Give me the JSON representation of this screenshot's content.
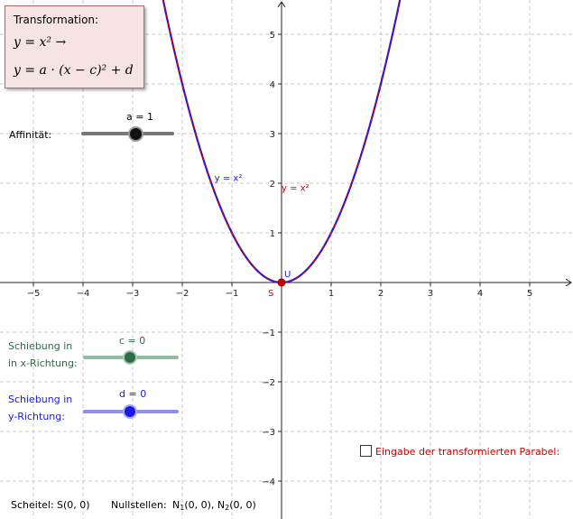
{
  "infobox": {
    "label": "Transformation:",
    "formula1": "y = x² →",
    "formula2": "y = a · (x − c)² + d"
  },
  "sliders": {
    "affinity": {
      "label": "Affinität:",
      "value_text": "a = 1",
      "value": 1,
      "color": "#555555"
    },
    "shift_x": {
      "label_line1": "Schiebung in",
      "label_line2": "in x-Richtung:",
      "value_text": "c = 0",
      "value": 0,
      "color": "#2e6b46"
    },
    "shift_y": {
      "label_line1": "Schiebung in",
      "label_line2": "y-Richtung:",
      "value_text": "d = 0",
      "value": 0,
      "color": "#1a1ae6"
    }
  },
  "checkbox": {
    "label": "Eingabe der transformierten Parabel:",
    "checked": false,
    "color": "#cc0000"
  },
  "footer": {
    "vertex_label": "Scheitel:",
    "vertex_value": "S(0, 0)",
    "zeros_label": "Nullstellen:",
    "zero1_main": "N",
    "zero1_sub": "1",
    "zero1_rest": "(0, 0), ",
    "zero2_main": "N",
    "zero2_sub": "2",
    "zero2_rest": "(0, 0)"
  },
  "chart_data": {
    "type": "line",
    "xlim": [
      -5.5,
      5.75
    ],
    "ylim": [
      -4.65,
      5.5
    ],
    "x_ticks": [
      -5,
      -4,
      -3,
      -2,
      -1,
      1,
      2,
      3,
      4,
      5
    ],
    "y_ticks": [
      -4,
      -3,
      -2,
      -1,
      1,
      2,
      3,
      4,
      5
    ],
    "x_tick_labels": [
      "−5",
      "−4",
      "−3",
      "−2",
      "−1",
      "1",
      "2",
      "3",
      "4",
      "5"
    ],
    "y_tick_labels": [
      "−4",
      "−3",
      "−2",
      "−1",
      "1",
      "2",
      "3",
      "4",
      "5"
    ],
    "grid": true,
    "series": [
      {
        "name": "y = x²",
        "a": 1,
        "c": 0,
        "d": 0,
        "color": "#1a1ae6",
        "label_at": [
          -1.35,
          2.05
        ]
      },
      {
        "name": "y = x²",
        "a": 1,
        "c": 0,
        "d": 0,
        "color": "#cc0000",
        "label_at": [
          0.0,
          1.85
        ]
      }
    ],
    "points": [
      {
        "name": "S",
        "x": 0,
        "y": 0,
        "label": "S",
        "label_color": "#cc0000",
        "fill": "#cc0000"
      },
      {
        "name": "U",
        "x": 0,
        "y": 0,
        "label": "U",
        "label_color": "#1a1ae6"
      }
    ]
  }
}
